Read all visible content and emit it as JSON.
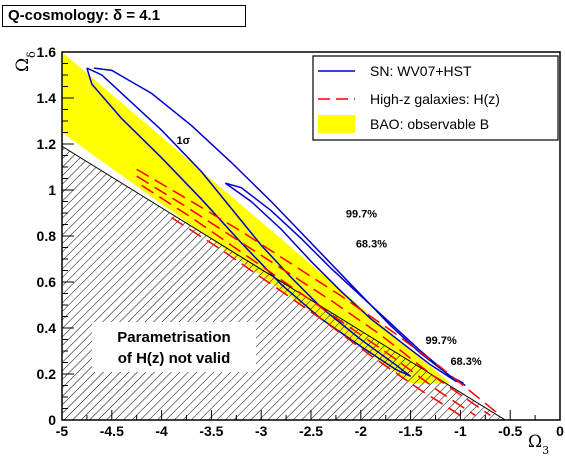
{
  "title": "Q-cosmology: δ = 4.1",
  "chart_data": {
    "type": "contour",
    "xlabel": "Ω3",
    "ylabel": "Ωδ",
    "xlim": [
      -5,
      0
    ],
    "ylim": [
      0,
      1.6
    ],
    "xticks": [
      "-5",
      "-4.5",
      "-4",
      "-3.5",
      "-3",
      "-2.5",
      "-2",
      "-1.5",
      "-1",
      "-0.5",
      "0"
    ],
    "yticks": [
      "0",
      "0.2",
      "0.4",
      "0.6",
      "0.8",
      "1",
      "1.2",
      "1.4",
      "1.6"
    ],
    "legend_position": "top-right",
    "legend": [
      {
        "label": "SN: WV07+HST",
        "style": "solid line",
        "color": "#0000cc"
      },
      {
        "label": "High-z galaxies: H(z)",
        "style": "dashed line",
        "color": "#ff0000"
      },
      {
        "label": "BAO: observable B",
        "style": "filled band",
        "color": "#ffff00"
      }
    ],
    "invalid_region": {
      "label_line1": "Parametrisation",
      "label_line2": "of H(z) not valid",
      "boundary": [
        [
          -5,
          1.19
        ],
        [
          -0.55,
          0
        ]
      ],
      "fill": "hatched"
    },
    "bao_band": {
      "color": "#ffff00",
      "upper_edge": [
        [
          -5,
          1.6
        ],
        [
          -1.1,
          0.16
        ]
      ],
      "lower_edge": [
        [
          -5,
          1.25
        ],
        [
          -1.5,
          0.16
        ]
      ]
    },
    "sn_contours": [
      {
        "level": "1σ",
        "points": [
          [
            -4.75,
            1.53
          ],
          [
            -4.6,
            1.5
          ],
          [
            -4.0,
            1.26
          ],
          [
            -3.6,
            1.08
          ],
          [
            -3.3,
            0.92
          ],
          [
            -3.0,
            0.76
          ],
          [
            -2.7,
            0.62
          ],
          [
            -2.4,
            0.49
          ],
          [
            -2.0,
            0.35
          ],
          [
            -1.65,
            0.24
          ],
          [
            -1.5,
            0.19
          ],
          [
            -1.65,
            0.22
          ],
          [
            -2.0,
            0.32
          ],
          [
            -2.4,
            0.44
          ],
          [
            -2.8,
            0.59
          ],
          [
            -3.2,
            0.77
          ],
          [
            -3.6,
            0.96
          ],
          [
            -4.0,
            1.14
          ],
          [
            -4.4,
            1.31
          ],
          [
            -4.7,
            1.46
          ],
          [
            -4.75,
            1.53
          ]
        ]
      },
      {
        "level": "68.3%",
        "points": [
          [
            -3.36,
            1.03
          ],
          [
            -3.2,
            1.01
          ],
          [
            -2.9,
            0.91
          ],
          [
            -2.6,
            0.79
          ],
          [
            -2.3,
            0.66
          ],
          [
            -2.0,
            0.54
          ],
          [
            -1.7,
            0.42
          ],
          [
            -1.4,
            0.3
          ],
          [
            -1.1,
            0.19
          ],
          [
            -0.97,
            0.16
          ],
          [
            -1.05,
            0.17
          ],
          [
            -1.3,
            0.24
          ],
          [
            -1.6,
            0.34
          ],
          [
            -1.9,
            0.44
          ],
          [
            -2.2,
            0.56
          ],
          [
            -2.5,
            0.69
          ],
          [
            -2.8,
            0.83
          ],
          [
            -3.1,
            0.95
          ],
          [
            -3.36,
            1.03
          ]
        ]
      },
      {
        "level": "99.7%",
        "points": [
          [
            -4.68,
            1.53
          ],
          [
            -4.5,
            1.52
          ],
          [
            -4.1,
            1.42
          ],
          [
            -3.7,
            1.28
          ],
          [
            -3.3,
            1.12
          ],
          [
            -2.9,
            0.95
          ],
          [
            -2.5,
            0.77
          ],
          [
            -2.1,
            0.59
          ],
          [
            -1.7,
            0.41
          ],
          [
            -1.4,
            0.29
          ],
          [
            -1.1,
            0.19
          ],
          [
            -0.95,
            0.15
          ]
        ]
      }
    ],
    "hz_contours": [
      {
        "level": "68.3%",
        "points": [
          [
            -4.25,
            1.06
          ],
          [
            -3.8,
            0.94
          ],
          [
            -3.3,
            0.8
          ],
          [
            -2.8,
            0.66
          ],
          [
            -2.3,
            0.52
          ],
          [
            -1.8,
            0.37
          ],
          [
            -1.3,
            0.2
          ],
          [
            -0.7,
            0.02
          ]
        ]
      },
      {
        "level": "68.3%",
        "points": [
          [
            -4.2,
            1.02
          ],
          [
            -3.7,
            0.88
          ],
          [
            -3.2,
            0.73
          ],
          [
            -2.7,
            0.58
          ],
          [
            -2.2,
            0.43
          ],
          [
            -1.7,
            0.28
          ],
          [
            -1.2,
            0.12
          ],
          [
            -0.85,
            0.02
          ]
        ]
      },
      {
        "level": "99.7%",
        "points": [
          [
            -4.25,
            1.09
          ],
          [
            -3.7,
            0.95
          ],
          [
            -3.2,
            0.82
          ],
          [
            -2.7,
            0.68
          ],
          [
            -2.2,
            0.54
          ],
          [
            -1.7,
            0.39
          ],
          [
            -1.2,
            0.23
          ],
          [
            -0.6,
            0.02
          ]
        ]
      },
      {
        "level": "99.7%",
        "points": [
          [
            -3.9,
            0.88
          ],
          [
            -3.4,
            0.74
          ],
          [
            -2.9,
            0.59
          ],
          [
            -2.4,
            0.44
          ],
          [
            -1.9,
            0.28
          ],
          [
            -1.4,
            0.13
          ],
          [
            -1.0,
            0.02
          ]
        ]
      }
    ],
    "annotations": [
      {
        "text": "1σ",
        "x": -3.85,
        "y": 1.2
      },
      {
        "text": "99.7%",
        "x": -2.15,
        "y": 0.88
      },
      {
        "text": "68.3%",
        "x": -2.05,
        "y": 0.75
      },
      {
        "text": "99.7%",
        "x": -1.35,
        "y": 0.33
      },
      {
        "text": "68.3%",
        "x": -1.1,
        "y": 0.24
      }
    ]
  }
}
